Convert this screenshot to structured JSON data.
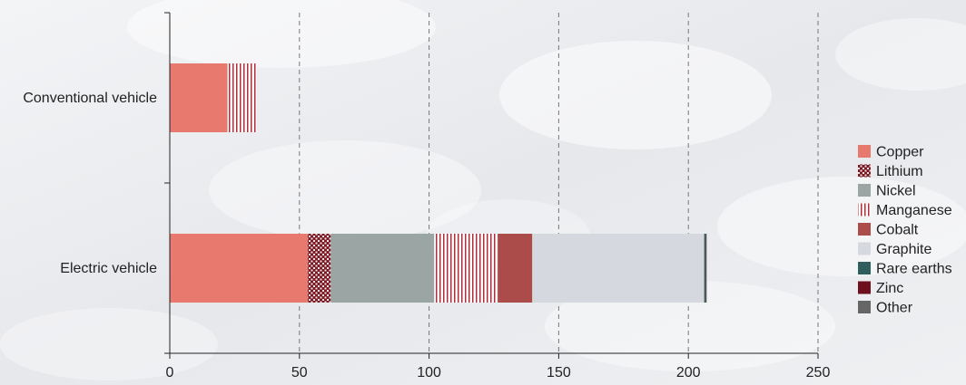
{
  "chart_data": {
    "type": "bar",
    "orientation": "horizontal",
    "stacked": true,
    "categories": [
      "Conventional vehicle",
      "Electric vehicle"
    ],
    "series": [
      {
        "name": "Copper",
        "values": [
          22.3,
          53.2
        ],
        "color": "#e8796f",
        "pattern": "solid"
      },
      {
        "name": "Lithium",
        "values": [
          0,
          8.9
        ],
        "color": "#7a1a24",
        "pattern": "checker"
      },
      {
        "name": "Nickel",
        "values": [
          0,
          39.9
        ],
        "color": "#9aa5a4",
        "pattern": "solid"
      },
      {
        "name": "Manganese",
        "values": [
          11.2,
          24.5
        ],
        "color": "#b22d3a",
        "pattern": "vertical-lines"
      },
      {
        "name": "Cobalt",
        "values": [
          0,
          13.3
        ],
        "color": "#ab4b4a",
        "pattern": "solid"
      },
      {
        "name": "Graphite",
        "values": [
          0,
          66.3
        ],
        "color": "#d5d8de",
        "pattern": "solid"
      },
      {
        "name": "Rare earths",
        "values": [
          0,
          0.5
        ],
        "color": "#2f5f5c",
        "pattern": "solid"
      },
      {
        "name": "Zinc",
        "values": [
          0,
          0.1
        ],
        "color": "#6e0f1e",
        "pattern": "solid"
      },
      {
        "name": "Other",
        "values": [
          0,
          0.3
        ],
        "color": "#666666",
        "pattern": "solid"
      }
    ],
    "xlim": [
      0,
      250
    ],
    "xticks": [
      0,
      50,
      100,
      150,
      200,
      250
    ],
    "grid": "vertical-dashed",
    "legend_position": "right",
    "title": "",
    "xlabel": "",
    "ylabel": ""
  }
}
